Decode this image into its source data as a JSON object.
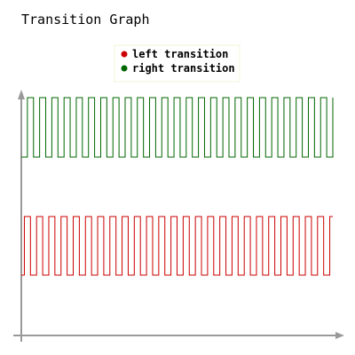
{
  "chart_data": {
    "type": "line",
    "title": "Transition Graph",
    "xlabel": "",
    "ylabel": "",
    "legend_position": "top-center",
    "grid": false,
    "x": [
      0,
      1,
      2,
      3,
      4,
      5,
      6,
      7,
      8,
      9,
      10,
      11,
      12,
      13,
      14,
      15,
      16,
      17,
      18,
      19,
      20,
      21,
      22,
      23,
      24,
      25,
      26,
      27,
      28,
      29,
      30,
      31,
      32,
      33,
      34,
      35,
      36,
      37,
      38,
      39,
      40,
      41,
      42,
      43,
      44,
      45,
      46,
      47,
      48,
      49,
      50,
      51,
      52,
      53,
      54,
      55,
      56,
      57,
      58,
      59,
      60,
      61,
      62,
      63,
      64,
      65,
      66,
      67,
      68,
      69,
      70,
      71,
      72,
      73,
      74,
      75,
      76,
      77,
      78,
      79,
      80,
      81,
      82,
      83,
      84,
      85,
      86,
      87,
      88,
      89,
      90,
      91,
      92,
      93,
      94,
      95,
      96,
      97,
      98,
      99,
      100,
      101,
      102
    ],
    "series": [
      {
        "name": "left transition",
        "color": "#cc0000",
        "baseline": 0,
        "values": [
          0,
          1,
          1,
          0,
          0,
          1,
          1,
          0,
          0,
          1,
          1,
          0,
          0,
          1,
          1,
          0,
          0,
          1,
          1,
          0,
          0,
          1,
          1,
          0,
          0,
          1,
          1,
          0,
          0,
          1,
          1,
          0,
          0,
          1,
          1,
          0,
          0,
          1,
          1,
          0,
          0,
          1,
          1,
          0,
          0,
          1,
          1,
          0,
          0,
          1,
          1,
          0,
          0,
          1,
          1,
          0,
          0,
          1,
          1,
          0,
          0,
          1,
          1,
          0,
          0,
          1,
          1,
          0,
          0,
          1,
          1,
          0,
          0,
          1,
          1,
          0,
          0,
          1,
          1,
          0,
          0,
          1,
          1,
          0,
          0,
          1,
          1,
          0,
          0,
          1,
          1,
          0,
          0,
          1,
          1,
          0,
          0,
          1,
          1,
          0,
          0,
          1,
          1
        ]
      },
      {
        "name": "right transition",
        "color": "#006600",
        "baseline": 2,
        "values": [
          0,
          0,
          1,
          1,
          0,
          0,
          1,
          1,
          0,
          0,
          1,
          1,
          0,
          0,
          1,
          1,
          0,
          0,
          1,
          1,
          0,
          0,
          1,
          1,
          0,
          0,
          1,
          1,
          0,
          0,
          1,
          1,
          0,
          0,
          1,
          1,
          0,
          0,
          1,
          1,
          0,
          0,
          1,
          1,
          0,
          0,
          1,
          1,
          0,
          0,
          1,
          1,
          0,
          0,
          1,
          1,
          0,
          0,
          1,
          1,
          0,
          0,
          1,
          1,
          0,
          0,
          1,
          1,
          0,
          0,
          1,
          1,
          0,
          0,
          1,
          1,
          0,
          0,
          1,
          1,
          0,
          0,
          1,
          1,
          0,
          0,
          1,
          1,
          0,
          0,
          1,
          1,
          0,
          0,
          1,
          1,
          0,
          0,
          1,
          1,
          0,
          0,
          1
        ]
      }
    ]
  }
}
